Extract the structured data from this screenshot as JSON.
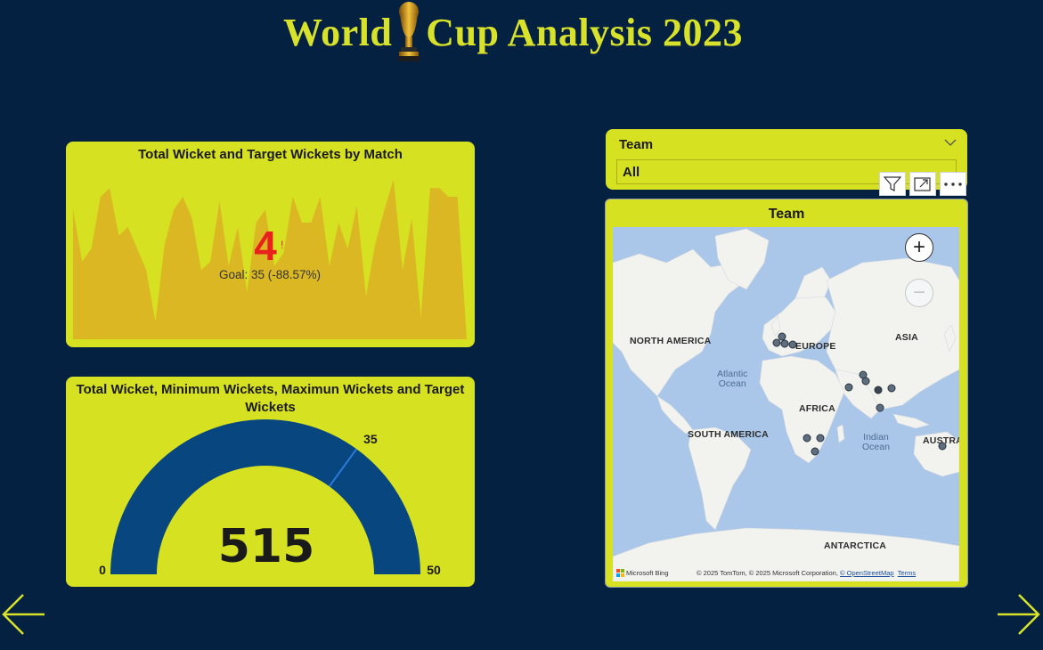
{
  "header": {
    "title_left": "World",
    "title_right": "Cup Analysis 2023",
    "logo_icon": "trophy-icon",
    "accent_color": "#d8e22a"
  },
  "kpi_card": {
    "title": "Total Wicket and Target Wickets by Match",
    "value": "4",
    "alert_marker": "!",
    "goal_text": "Goal: 35 (-88.57%)",
    "value_color": "#e8211d",
    "area_color": "#dbb823",
    "trend_values": [
      30,
      18,
      21,
      33,
      35,
      24,
      26,
      21,
      16,
      4,
      22,
      30,
      33,
      28,
      16,
      18,
      32,
      17,
      26,
      11,
      27,
      30,
      17,
      20,
      33,
      27,
      27,
      33,
      17,
      27,
      21,
      31,
      10,
      22,
      30,
      37,
      16,
      28,
      5,
      35,
      35,
      33,
      33,
      0
    ]
  },
  "gauge_card": {
    "title": "Total Wicket, Minimum Wickets, Maximun Wickets and Target Wickets",
    "value": "515",
    "min_label": "0",
    "max_label": "50",
    "target_label": "35",
    "min": 0,
    "max": 50,
    "target": 35,
    "fill_fraction": 1.0,
    "fill_color": "#08467f"
  },
  "slicer": {
    "label": "Team",
    "selected": "All",
    "chevron_icon": "chevron-down-icon"
  },
  "visual_header": {
    "filter_icon": "filter-icon",
    "focus_icon": "focus-mode-icon",
    "more_icon": "more-options-icon"
  },
  "map_card": {
    "title": "Team",
    "continents": {
      "north_america": "NORTH AMERICA",
      "europe": "EUROPE",
      "asia": "ASIA",
      "africa": "AFRICA",
      "south_america": "SOUTH AMERICA",
      "australia": "AUSTRA",
      "antarctica": "ANTARCTICA"
    },
    "oceans": {
      "atlantic": "Atlantic\nOcean",
      "indian": "Indian\nOcean"
    },
    "zoom_in": "+",
    "zoom_out": "−",
    "bing_label": "Microsoft Bing",
    "copyright": "© 2025 TomTom, © 2025 Microsoft Corporation,",
    "osm_link": "© OpenStreetMap",
    "terms_link": "Terms"
  },
  "navigation": {
    "back_icon": "arrow-left-icon",
    "forward_icon": "arrow-right-icon"
  }
}
